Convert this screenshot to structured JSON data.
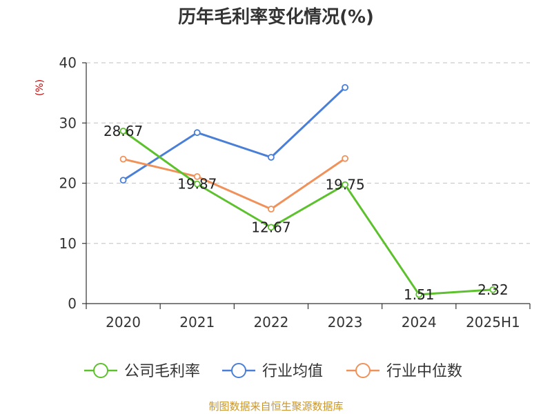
{
  "chart_data": {
    "type": "line",
    "title": "历年毛利率变化情况(%)",
    "ylabel": "(%)",
    "categories": [
      "2020",
      "2021",
      "2022",
      "2023",
      "2024",
      "2025H1"
    ],
    "ylim": [
      0,
      40
    ],
    "yticks": [
      0,
      10,
      20,
      30,
      40
    ],
    "grid": true,
    "legend_position": "bottom",
    "series": [
      {
        "name": "公司毛利率",
        "color": "#5cc12d",
        "values": [
          28.67,
          19.87,
          12.67,
          19.75,
          1.51,
          2.32
        ],
        "labels": [
          "28.67",
          "19.87",
          "12.67",
          "19.75",
          "1.51",
          "2.32"
        ]
      },
      {
        "name": "行业均值",
        "color": "#4a7fd8",
        "values": [
          20.5,
          28.4,
          24.3,
          35.9,
          null,
          null
        ]
      },
      {
        "name": "行业中位数",
        "color": "#f0915a",
        "values": [
          24.0,
          21.1,
          15.7,
          24.1,
          null,
          null
        ]
      }
    ]
  },
  "colors": {
    "axis": "#333333",
    "grid": "#cccccc",
    "ylabel": "#cc0000",
    "source": "#c8962e"
  },
  "source": "制图数据来自恒生聚源数据库"
}
